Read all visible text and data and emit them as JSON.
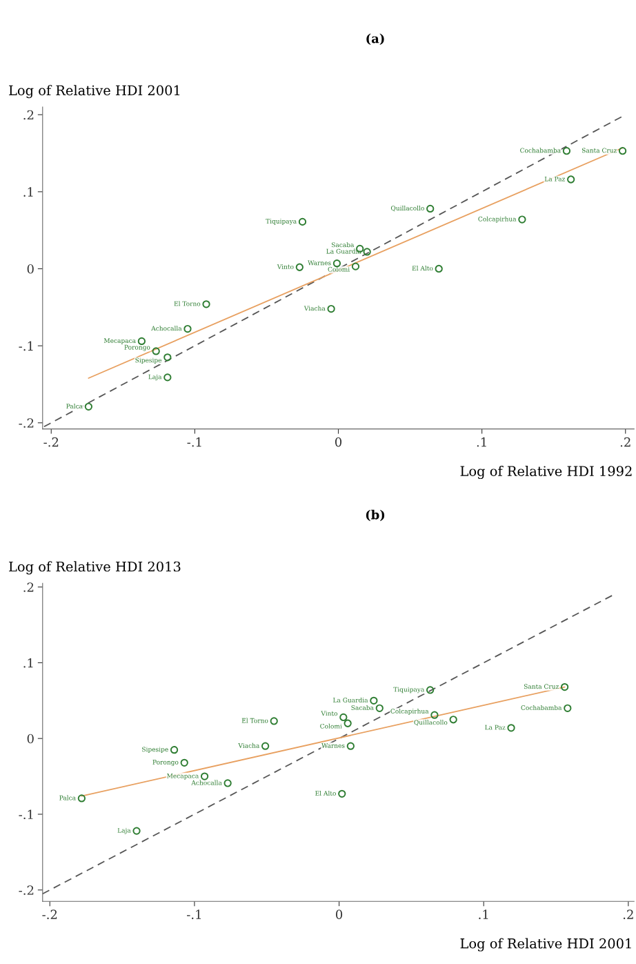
{
  "chart_data": [
    {
      "type": "scatter",
      "title": "(a)",
      "xlabel": "Log of Relative HDI 1992",
      "ylabel": "Log of Relative HDI 2001",
      "xlim": [
        -0.206,
        0.206
      ],
      "ylim": [
        -0.208,
        0.21
      ],
      "xticks": [
        {
          "value": -0.2,
          "label": "-.2"
        },
        {
          "value": -0.1,
          "label": "-.1"
        },
        0,
        {
          "value": 0.1,
          "label": ".1"
        },
        {
          "value": 0.2,
          "label": ".2"
        }
      ],
      "yticks": [
        {
          "value": -0.2,
          "label": "-.2"
        },
        {
          "value": -0.1,
          "label": "-.1"
        },
        0,
        {
          "value": 0.1,
          "label": ".1"
        },
        {
          "value": 0.2,
          "label": ".2"
        }
      ],
      "grid": false,
      "legend": false,
      "series": [
        {
          "type": "line",
          "color": "#555555",
          "line_style": "dashed",
          "marker": "none",
          "x": [
            -0.205,
            0.198
          ],
          "values": [
            -0.205,
            0.198
          ]
        },
        {
          "type": "line",
          "color": "#e8a060",
          "line_style": "solid",
          "marker": "none",
          "x": [
            -0.174,
            0.198
          ],
          "values": [
            -0.142,
            0.157
          ]
        },
        {
          "color": "#2e7d32",
          "marker": "circle",
          "x": [
            0.159,
            0.198,
            0.162,
            0.064,
            0.128,
            0.07,
            0.015,
            0.02,
            -0.001,
            0.012,
            -0.027,
            -0.025,
            -0.092,
            -0.105,
            -0.137,
            -0.127,
            -0.119,
            -0.119,
            -0.174,
            -0.005
          ],
          "values": [
            0.153,
            0.153,
            0.116,
            0.078,
            0.064,
            0.0,
            0.026,
            0.022,
            0.007,
            0.003,
            0.002,
            0.061,
            -0.046,
            -0.078,
            -0.094,
            -0.107,
            -0.115,
            -0.141,
            -0.179,
            -0.052
          ]
        }
      ],
      "annotations": [
        {
          "text": "Cochabamba",
          "x": 0.159,
          "y": 0.153
        },
        {
          "text": "Santa Cruz",
          "x": 0.198,
          "y": 0.153
        },
        {
          "text": "La Paz",
          "x": 0.162,
          "y": 0.116
        },
        {
          "text": "Quillacollo",
          "x": 0.064,
          "y": 0.078
        },
        {
          "text": "Colcapirhua",
          "x": 0.128,
          "y": 0.064
        },
        {
          "text": "El Alto",
          "x": 0.07,
          "y": 0.0
        },
        {
          "text": "Sacaba",
          "x": 0.015,
          "y": 0.026
        },
        {
          "text": "La Guardia",
          "x": 0.02,
          "y": 0.022
        },
        {
          "text": "Warnes",
          "x": -0.001,
          "y": 0.007
        },
        {
          "text": "Colomi",
          "x": 0.012,
          "y": 0.003
        },
        {
          "text": "Vinto",
          "x": -0.027,
          "y": 0.002
        },
        {
          "text": "Tiquipaya",
          "x": -0.025,
          "y": 0.061
        },
        {
          "text": "El Torno",
          "x": -0.092,
          "y": -0.046
        },
        {
          "text": "Achocalla",
          "x": -0.105,
          "y": -0.078
        },
        {
          "text": "Mecapaca",
          "x": -0.137,
          "y": -0.094
        },
        {
          "text": "Porongo",
          "x": -0.127,
          "y": -0.107
        },
        {
          "text": "Sipesipe",
          "x": -0.119,
          "y": -0.115
        },
        {
          "text": "Laja",
          "x": -0.119,
          "y": -0.141
        },
        {
          "text": "Palca",
          "x": -0.174,
          "y": -0.179
        },
        {
          "text": "Viacha",
          "x": -0.005,
          "y": -0.052
        }
      ]
    },
    {
      "type": "scatter",
      "title": "(b)",
      "xlabel": "Log of Relative HDI 2001",
      "ylabel": "Log of Relative HDI 2013",
      "xlim": [
        -0.205,
        0.204
      ],
      "ylim": [
        -0.215,
        0.205
      ],
      "xticks": [
        {
          "value": -0.2,
          "label": "-.2"
        },
        {
          "value": -0.1,
          "label": "-.1"
        },
        0,
        {
          "value": 0.1,
          "label": ".1"
        },
        {
          "value": 0.2,
          "label": ".2"
        }
      ],
      "yticks": [
        {
          "value": -0.2,
          "label": "-.2"
        },
        {
          "value": -0.1,
          "label": "-.1"
        },
        0,
        {
          "value": 0.1,
          "label": ".1"
        },
        {
          "value": 0.2,
          "label": ".2"
        }
      ],
      "grid": false,
      "legend": false,
      "series": [
        {
          "type": "line",
          "color": "#555555",
          "line_style": "dashed",
          "marker": "none",
          "x": [
            -0.205,
            0.19
          ],
          "values": [
            -0.205,
            0.19
          ]
        },
        {
          "type": "line",
          "color": "#e8a060",
          "line_style": "solid",
          "marker": "none",
          "x": [
            -0.178,
            0.156
          ],
          "values": [
            -0.076,
            0.068
          ]
        },
        {
          "color": "#2e7d32",
          "marker": "circle",
          "x": [
            -0.178,
            -0.14,
            -0.114,
            -0.107,
            -0.093,
            -0.077,
            -0.051,
            -0.045,
            0.063,
            0.024,
            0.028,
            0.003,
            0.006,
            0.066,
            0.079,
            0.156,
            0.158,
            0.119,
            0.008,
            0.002
          ],
          "values": [
            -0.079,
            -0.122,
            -0.015,
            -0.032,
            -0.05,
            -0.059,
            -0.01,
            0.023,
            0.064,
            0.05,
            0.04,
            0.028,
            0.02,
            0.031,
            0.025,
            0.068,
            0.04,
            0.014,
            -0.01,
            -0.073
          ]
        }
      ],
      "annotations": [
        {
          "text": "Palca",
          "x": -0.178,
          "y": -0.079
        },
        {
          "text": "Laja",
          "x": -0.14,
          "y": -0.122
        },
        {
          "text": "Sipesipe",
          "x": -0.114,
          "y": -0.015
        },
        {
          "text": "Porongo",
          "x": -0.107,
          "y": -0.032
        },
        {
          "text": "Mecapaca",
          "x": -0.093,
          "y": -0.05
        },
        {
          "text": "Achocalla",
          "x": -0.077,
          "y": -0.059
        },
        {
          "text": "Viacha",
          "x": -0.051,
          "y": -0.01
        },
        {
          "text": "El Torno",
          "x": -0.045,
          "y": 0.023
        },
        {
          "text": "Tiquipaya",
          "x": 0.063,
          "y": 0.064
        },
        {
          "text": "La Guardia",
          "x": 0.024,
          "y": 0.05
        },
        {
          "text": "Sacaba",
          "x": 0.028,
          "y": 0.04
        },
        {
          "text": "Vinto",
          "x": 0.003,
          "y": 0.028
        },
        {
          "text": "Colomi",
          "x": 0.006,
          "y": 0.02
        },
        {
          "text": "Colcapirhua",
          "x": 0.066,
          "y": 0.031
        },
        {
          "text": "Quillacollo",
          "x": 0.079,
          "y": 0.025
        },
        {
          "text": "Santa Cruz",
          "x": 0.156,
          "y": 0.068
        },
        {
          "text": "Cochabamba",
          "x": 0.158,
          "y": 0.04
        },
        {
          "text": "La Paz",
          "x": 0.119,
          "y": 0.014
        },
        {
          "text": "Warnes",
          "x": 0.008,
          "y": -0.01
        },
        {
          "text": "El Alto",
          "x": 0.002,
          "y": -0.073
        }
      ]
    }
  ]
}
